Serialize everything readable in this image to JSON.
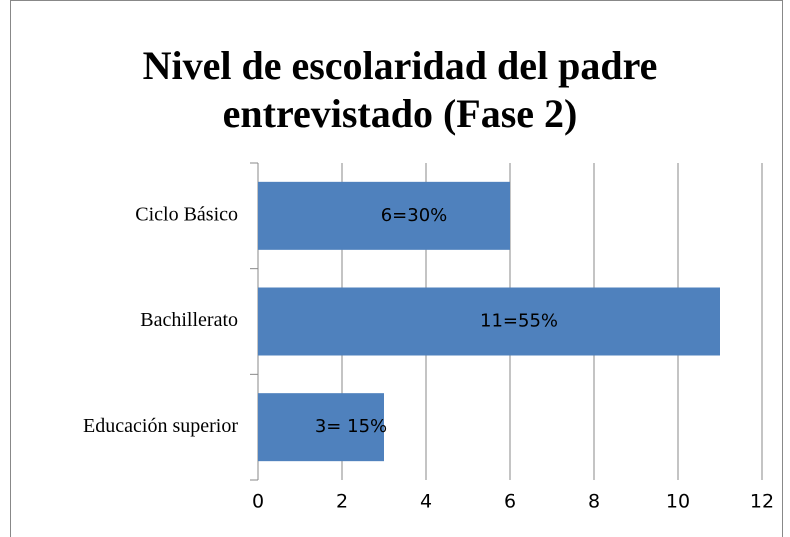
{
  "chart_data": {
    "type": "bar",
    "orientation": "horizontal",
    "title": "Nivel de escolaridad del padre entrevistado (Fase 2)",
    "categories": [
      "Ciclo Básico",
      "Bachillerato",
      "Educación superior"
    ],
    "values": [
      6,
      11,
      3
    ],
    "value_labels": [
      "6=30%",
      "11=55%",
      "3= 15%"
    ],
    "color": "#4f81bd",
    "xlim": [
      0,
      12
    ],
    "xticks": [
      0,
      2,
      4,
      6,
      8,
      10,
      12
    ],
    "grid": true
  }
}
